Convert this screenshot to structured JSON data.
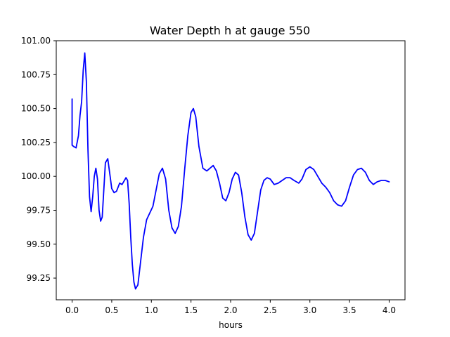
{
  "chart_data": {
    "type": "line",
    "title": "Water Depth h at gauge 550",
    "xlabel": "hours",
    "ylabel": "",
    "xlim": [
      -0.2,
      4.2
    ],
    "ylim": [
      99.09,
      101.0
    ],
    "grid": false,
    "x_ticks": [
      0.0,
      0.5,
      1.0,
      1.5,
      2.0,
      2.5,
      3.0,
      3.5,
      4.0
    ],
    "x_tick_labels": [
      "0.0",
      "0.5",
      "1.0",
      "1.5",
      "2.0",
      "2.5",
      "3.0",
      "3.5",
      "4.0"
    ],
    "y_ticks": [
      99.25,
      99.5,
      99.75,
      100.0,
      100.25,
      100.5,
      100.75,
      101.0
    ],
    "y_tick_labels": [
      "99.25",
      "99.50",
      "99.75",
      "100.00",
      "100.25",
      "100.50",
      "100.75",
      "101.00"
    ],
    "series": [
      {
        "name": "",
        "color": "#0000ff",
        "points": [
          [
            0.0,
            100.57
          ],
          [
            0.0,
            100.23
          ],
          [
            0.02,
            100.22
          ],
          [
            0.05,
            100.21
          ],
          [
            0.08,
            100.3
          ],
          [
            0.1,
            100.45
          ],
          [
            0.12,
            100.55
          ],
          [
            0.14,
            100.78
          ],
          [
            0.16,
            100.91
          ],
          [
            0.18,
            100.7
          ],
          [
            0.2,
            100.2
          ],
          [
            0.22,
            99.85
          ],
          [
            0.24,
            99.74
          ],
          [
            0.26,
            99.85
          ],
          [
            0.28,
            100.0
          ],
          [
            0.3,
            100.06
          ],
          [
            0.32,
            99.98
          ],
          [
            0.34,
            99.75
          ],
          [
            0.36,
            99.67
          ],
          [
            0.38,
            99.7
          ],
          [
            0.4,
            99.9
          ],
          [
            0.42,
            100.1
          ],
          [
            0.45,
            100.13
          ],
          [
            0.48,
            100.0
          ],
          [
            0.5,
            99.91
          ],
          [
            0.53,
            99.88
          ],
          [
            0.56,
            99.89
          ],
          [
            0.58,
            99.92
          ],
          [
            0.6,
            99.95
          ],
          [
            0.63,
            99.94
          ],
          [
            0.65,
            99.96
          ],
          [
            0.68,
            99.99
          ],
          [
            0.7,
            99.97
          ],
          [
            0.72,
            99.8
          ],
          [
            0.74,
            99.55
          ],
          [
            0.76,
            99.35
          ],
          [
            0.78,
            99.22
          ],
          [
            0.8,
            99.17
          ],
          [
            0.83,
            99.2
          ],
          [
            0.86,
            99.35
          ],
          [
            0.9,
            99.55
          ],
          [
            0.94,
            99.68
          ],
          [
            0.98,
            99.73
          ],
          [
            1.02,
            99.78
          ],
          [
            1.06,
            99.9
          ],
          [
            1.1,
            100.02
          ],
          [
            1.14,
            100.06
          ],
          [
            1.18,
            99.98
          ],
          [
            1.22,
            99.75
          ],
          [
            1.26,
            99.62
          ],
          [
            1.3,
            99.58
          ],
          [
            1.34,
            99.63
          ],
          [
            1.38,
            99.78
          ],
          [
            1.42,
            100.05
          ],
          [
            1.46,
            100.3
          ],
          [
            1.5,
            100.47
          ],
          [
            1.53,
            100.5
          ],
          [
            1.56,
            100.44
          ],
          [
            1.6,
            100.22
          ],
          [
            1.65,
            100.06
          ],
          [
            1.7,
            100.04
          ],
          [
            1.74,
            100.06
          ],
          [
            1.78,
            100.08
          ],
          [
            1.82,
            100.04
          ],
          [
            1.86,
            99.95
          ],
          [
            1.9,
            99.84
          ],
          [
            1.94,
            99.82
          ],
          [
            1.98,
            99.88
          ],
          [
            2.02,
            99.98
          ],
          [
            2.06,
            100.03
          ],
          [
            2.1,
            100.01
          ],
          [
            2.14,
            99.88
          ],
          [
            2.18,
            99.7
          ],
          [
            2.22,
            99.57
          ],
          [
            2.26,
            99.53
          ],
          [
            2.3,
            99.58
          ],
          [
            2.34,
            99.74
          ],
          [
            2.38,
            99.9
          ],
          [
            2.42,
            99.97
          ],
          [
            2.46,
            99.99
          ],
          [
            2.5,
            99.98
          ],
          [
            2.55,
            99.94
          ],
          [
            2.6,
            99.95
          ],
          [
            2.65,
            99.97
          ],
          [
            2.7,
            99.99
          ],
          [
            2.75,
            99.99
          ],
          [
            2.8,
            99.97
          ],
          [
            2.86,
            99.95
          ],
          [
            2.9,
            99.98
          ],
          [
            2.95,
            100.05
          ],
          [
            3.0,
            100.07
          ],
          [
            3.05,
            100.05
          ],
          [
            3.1,
            100.0
          ],
          [
            3.15,
            99.95
          ],
          [
            3.2,
            99.92
          ],
          [
            3.25,
            99.88
          ],
          [
            3.3,
            99.82
          ],
          [
            3.35,
            99.79
          ],
          [
            3.4,
            99.78
          ],
          [
            3.45,
            99.82
          ],
          [
            3.5,
            99.92
          ],
          [
            3.55,
            100.01
          ],
          [
            3.6,
            100.05
          ],
          [
            3.65,
            100.06
          ],
          [
            3.7,
            100.03
          ],
          [
            3.75,
            99.97
          ],
          [
            3.8,
            99.94
          ],
          [
            3.85,
            99.96
          ],
          [
            3.9,
            99.97
          ],
          [
            3.95,
            99.97
          ],
          [
            4.0,
            99.96
          ]
        ]
      }
    ]
  }
}
